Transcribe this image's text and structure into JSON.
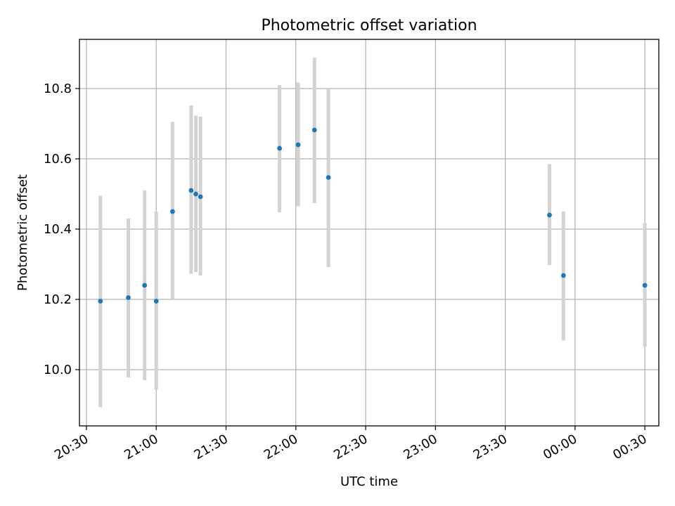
{
  "chart_data": {
    "type": "scatter",
    "title": "Photometric offset variation",
    "xlabel": "UTC time",
    "ylabel": "Photometric offset",
    "x_ticks": [
      "20:30",
      "21:00",
      "21:30",
      "22:00",
      "22:30",
      "23:00",
      "23:30",
      "00:00",
      "00:30"
    ],
    "y_ticks": [
      "10.0",
      "10.2",
      "10.4",
      "10.6",
      "10.8"
    ],
    "xlim": [
      "20:27",
      "00:36"
    ],
    "ylim": [
      9.84,
      10.94
    ],
    "grid": true,
    "colors": {
      "points": "#1f77b4",
      "error_bars": "#d3d3d3"
    },
    "points": [
      {
        "time": "20:36",
        "value": 10.195,
        "err_low": 9.893,
        "err_high": 10.495
      },
      {
        "time": "20:48",
        "value": 10.205,
        "err_low": 9.978,
        "err_high": 10.43
      },
      {
        "time": "20:55",
        "value": 10.24,
        "err_low": 9.97,
        "err_high": 10.51
      },
      {
        "time": "21:00",
        "value": 10.195,
        "err_low": 9.943,
        "err_high": 10.45
      },
      {
        "time": "21:07",
        "value": 10.45,
        "err_low": 10.198,
        "err_high": 10.705
      },
      {
        "time": "21:15",
        "value": 10.51,
        "err_low": 10.273,
        "err_high": 10.752
      },
      {
        "time": "21:17",
        "value": 10.5,
        "err_low": 10.278,
        "err_high": 10.723
      },
      {
        "time": "21:19",
        "value": 10.492,
        "err_low": 10.268,
        "err_high": 10.72
      },
      {
        "time": "21:53",
        "value": 10.63,
        "err_low": 10.448,
        "err_high": 10.81
      },
      {
        "time": "22:01",
        "value": 10.64,
        "err_low": 10.465,
        "err_high": 10.817
      },
      {
        "time": "22:08",
        "value": 10.682,
        "err_low": 10.474,
        "err_high": 10.888
      },
      {
        "time": "22:14",
        "value": 10.547,
        "err_low": 10.292,
        "err_high": 10.8
      },
      {
        "time": "23:49",
        "value": 10.44,
        "err_low": 10.298,
        "err_high": 10.585
      },
      {
        "time": "23:55",
        "value": 10.268,
        "err_low": 10.083,
        "err_high": 10.45
      },
      {
        "time": "00:30",
        "value": 10.24,
        "err_low": 10.065,
        "err_high": 10.417
      }
    ]
  }
}
